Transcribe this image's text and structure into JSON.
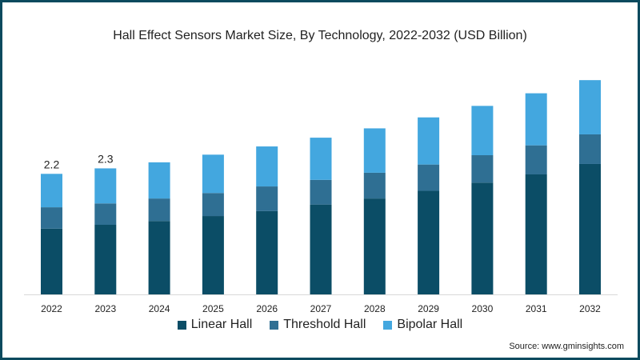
{
  "chart_data": {
    "type": "bar",
    "stacked": true,
    "title": "Hall Effect Sensors Market Size, By Technology, 2022-2032 (USD Billion)",
    "xlabel": "",
    "ylabel": "",
    "ylim": [
      0,
      4
    ],
    "grid": false,
    "legend_position": "bottom",
    "categories": [
      "2022",
      "2023",
      "2024",
      "2025",
      "2026",
      "2027",
      "2028",
      "2029",
      "2030",
      "2031",
      "2032"
    ],
    "series": [
      {
        "name": "Linear Hall",
        "color": "#0b4d66",
        "values": [
          1.2,
          1.27,
          1.34,
          1.43,
          1.52,
          1.64,
          1.75,
          1.89,
          2.04,
          2.19,
          2.38
        ]
      },
      {
        "name": "Threshold Hall",
        "color": "#2f6f93",
        "values": [
          0.39,
          0.39,
          0.41,
          0.42,
          0.45,
          0.45,
          0.47,
          0.48,
          0.5,
          0.53,
          0.54
        ]
      },
      {
        "name": "Bipolar Hall",
        "color": "#43a7df",
        "values": [
          0.61,
          0.64,
          0.66,
          0.7,
          0.73,
          0.77,
          0.81,
          0.86,
          0.9,
          0.95,
          0.99
        ]
      }
    ],
    "data_labels": [
      {
        "category": "2022",
        "text": "2.2"
      },
      {
        "category": "2023",
        "text": "2.3"
      }
    ],
    "source": "Source: www.gminsights.com"
  }
}
